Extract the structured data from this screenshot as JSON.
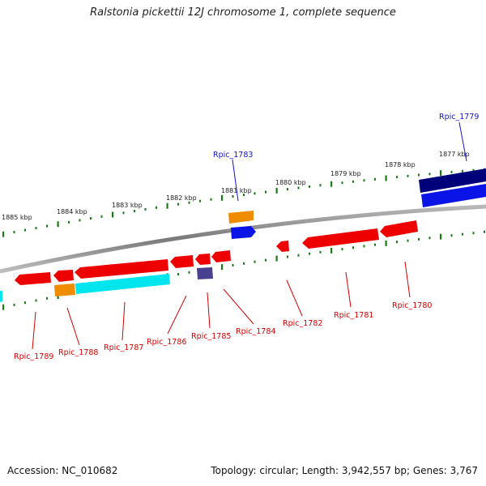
{
  "title": "Ralstonia pickettii 12J chromosome 1, complete sequence",
  "footer": {
    "accession": "Accession: NC_010682",
    "summary": "Topology: circular; Length: 3,942,557 bp; Genes: 3,767"
  },
  "scale_ticks": [
    "1877 kbp",
    "1878 kbp",
    "1879 kbp",
    "1880 kbp",
    "1881 kbp",
    "1882 kbp",
    "1883 kbp",
    "1884 kbp",
    "1885 kbp"
  ],
  "colors": {
    "forward_label": "#1515c8",
    "reverse_label": "#d40000",
    "red_gene": "#ee0000",
    "orange_gene": "#f08c00",
    "cyan_gene": "#00e5ee",
    "blue_gene": "#0a14e6",
    "navy_gene": "#00007a",
    "slate_gene": "#4a4090",
    "backbone": "#8a8a8a",
    "tick": "#1a7a1a"
  },
  "gene_labels": [
    {
      "text": "Rpic_1779",
      "strand": "forward"
    },
    {
      "text": "Rpic_1783",
      "strand": "forward"
    },
    {
      "text": "Rpic_1780",
      "strand": "reverse"
    },
    {
      "text": "Rpic_1781",
      "strand": "reverse"
    },
    {
      "text": "Rpic_1782",
      "strand": "reverse"
    },
    {
      "text": "Rpic_1784",
      "strand": "reverse"
    },
    {
      "text": "Rpic_1785",
      "strand": "reverse"
    },
    {
      "text": "Rpic_1786",
      "strand": "reverse"
    },
    {
      "text": "Rpic_1787",
      "strand": "reverse"
    },
    {
      "text": "Rpic_1788",
      "strand": "reverse"
    },
    {
      "text": "Rpic_1789",
      "strand": "reverse"
    }
  ]
}
